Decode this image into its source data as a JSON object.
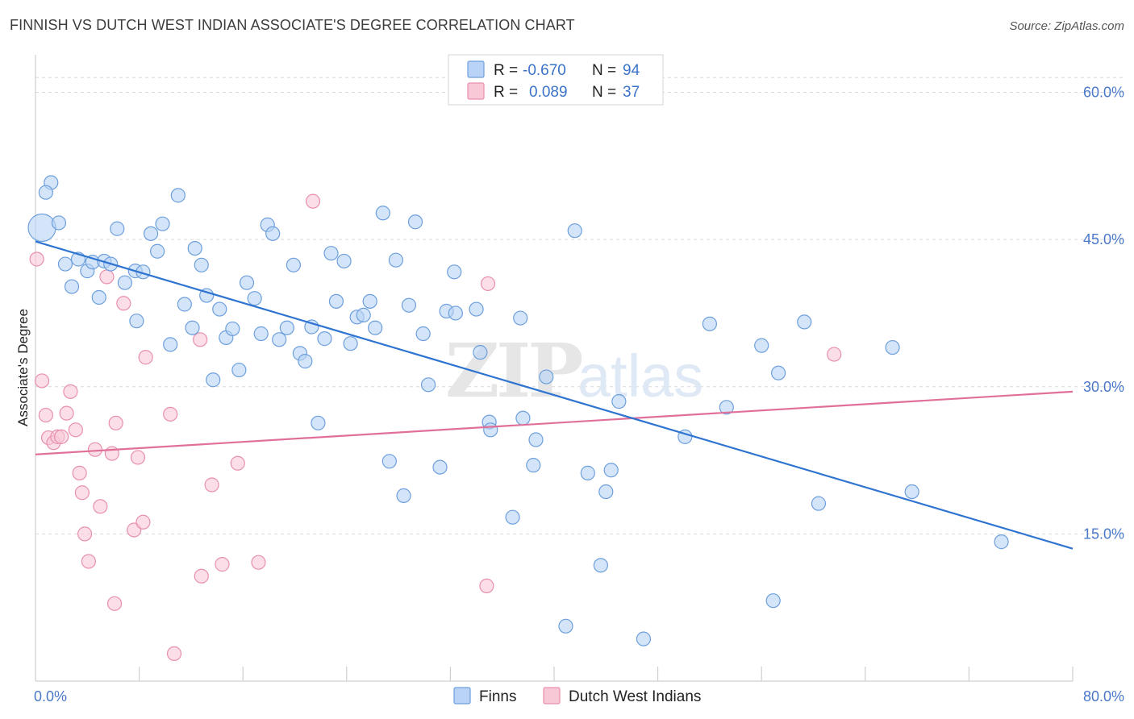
{
  "header": {
    "title": "FINNISH VS DUTCH WEST INDIAN ASSOCIATE'S DEGREE CORRELATION CHART",
    "source": "Source: ZipAtlas.com"
  },
  "watermark": {
    "zip": "ZIP",
    "atlas": "atlas"
  },
  "colors": {
    "finns_fill": "#b8d3f5",
    "finns_stroke": "#6d9fdc",
    "finns_line": "#2f74d0",
    "dwi_fill": "#f8c8d7",
    "dwi_stroke": "#e890ae",
    "dwi_line": "#e0709a",
    "tick_text": "#4a78c8",
    "grid": "#d9d9d9"
  },
  "chart_data": {
    "type": "scatter",
    "title": "FINNISH VS DUTCH WEST INDIAN ASSOCIATE'S DEGREE CORRELATION CHART",
    "xlabel": "",
    "ylabel": "Associate's Degree",
    "xlim": [
      0,
      80
    ],
    "ylim": [
      0,
      63
    ],
    "x_tick_labels": [
      "0.0%",
      "80.0%"
    ],
    "y_ticks": [
      15,
      30,
      45,
      60
    ],
    "y_tick_labels": [
      "15.0%",
      "30.0%",
      "45.0%",
      "60.0%"
    ],
    "grid": "horizontal dashed",
    "legend_position": "top-center (stats) and bottom-center (series)",
    "stats": [
      {
        "r_label": "R = ",
        "r": "-0.670",
        "n_label": "N = ",
        "n": "94"
      },
      {
        "r_label": "R = ",
        "r": "0.089",
        "n_label": "N = ",
        "n": "37"
      }
    ],
    "series": [
      {
        "name": "Finns",
        "trend": {
          "x": [
            0,
            80
          ],
          "y": [
            44.8,
            13.5
          ]
        },
        "points": [
          {
            "x": 0.5,
            "y": 46.2,
            "big": true
          },
          {
            "x": 1.2,
            "y": 50.8
          },
          {
            "x": 0.8,
            "y": 49.8
          },
          {
            "x": 1.8,
            "y": 46.7
          },
          {
            "x": 2.3,
            "y": 42.5
          },
          {
            "x": 2.8,
            "y": 40.2
          },
          {
            "x": 3.3,
            "y": 43.0
          },
          {
            "x": 4.0,
            "y": 41.8
          },
          {
            "x": 4.4,
            "y": 42.7
          },
          {
            "x": 4.9,
            "y": 39.1
          },
          {
            "x": 5.3,
            "y": 42.8
          },
          {
            "x": 5.8,
            "y": 42.5
          },
          {
            "x": 6.3,
            "y": 46.1
          },
          {
            "x": 6.9,
            "y": 40.6
          },
          {
            "x": 7.7,
            "y": 41.8
          },
          {
            "x": 7.8,
            "y": 36.7
          },
          {
            "x": 8.3,
            "y": 41.7
          },
          {
            "x": 8.9,
            "y": 45.6
          },
          {
            "x": 9.4,
            "y": 43.8
          },
          {
            "x": 9.8,
            "y": 46.6
          },
          {
            "x": 10.4,
            "y": 34.3
          },
          {
            "x": 11.0,
            "y": 49.5
          },
          {
            "x": 11.5,
            "y": 38.4
          },
          {
            "x": 12.1,
            "y": 36.0
          },
          {
            "x": 12.3,
            "y": 44.1
          },
          {
            "x": 12.8,
            "y": 42.4
          },
          {
            "x": 13.2,
            "y": 39.3
          },
          {
            "x": 13.7,
            "y": 30.7
          },
          {
            "x": 14.2,
            "y": 37.9
          },
          {
            "x": 14.7,
            "y": 35.0
          },
          {
            "x": 15.2,
            "y": 35.9
          },
          {
            "x": 15.7,
            "y": 31.7
          },
          {
            "x": 16.3,
            "y": 40.6
          },
          {
            "x": 16.9,
            "y": 39.0
          },
          {
            "x": 17.4,
            "y": 35.4
          },
          {
            "x": 17.9,
            "y": 46.5
          },
          {
            "x": 18.3,
            "y": 45.6
          },
          {
            "x": 18.8,
            "y": 34.8
          },
          {
            "x": 19.4,
            "y": 36.0
          },
          {
            "x": 19.9,
            "y": 42.4
          },
          {
            "x": 20.4,
            "y": 33.4
          },
          {
            "x": 20.8,
            "y": 32.6
          },
          {
            "x": 21.3,
            "y": 36.1
          },
          {
            "x": 21.8,
            "y": 26.3
          },
          {
            "x": 22.3,
            "y": 34.9
          },
          {
            "x": 22.8,
            "y": 43.6
          },
          {
            "x": 23.2,
            "y": 38.7
          },
          {
            "x": 23.8,
            "y": 42.8
          },
          {
            "x": 24.3,
            "y": 34.4
          },
          {
            "x": 24.8,
            "y": 37.1
          },
          {
            "x": 25.3,
            "y": 37.3
          },
          {
            "x": 25.8,
            "y": 38.7
          },
          {
            "x": 26.2,
            "y": 36.0
          },
          {
            "x": 26.8,
            "y": 47.7
          },
          {
            "x": 27.3,
            "y": 22.4
          },
          {
            "x": 27.8,
            "y": 42.9
          },
          {
            "x": 28.4,
            "y": 18.9
          },
          {
            "x": 28.8,
            "y": 38.3
          },
          {
            "x": 29.3,
            "y": 46.8
          },
          {
            "x": 29.9,
            "y": 35.4
          },
          {
            "x": 30.3,
            "y": 30.2
          },
          {
            "x": 31.2,
            "y": 21.8
          },
          {
            "x": 31.7,
            "y": 37.7
          },
          {
            "x": 32.3,
            "y": 41.7
          },
          {
            "x": 32.4,
            "y": 37.5
          },
          {
            "x": 34.0,
            "y": 37.9
          },
          {
            "x": 34.3,
            "y": 33.5
          },
          {
            "x": 35.0,
            "y": 26.4
          },
          {
            "x": 35.1,
            "y": 25.6
          },
          {
            "x": 36.8,
            "y": 16.7
          },
          {
            "x": 37.4,
            "y": 37.0
          },
          {
            "x": 37.6,
            "y": 26.8
          },
          {
            "x": 38.4,
            "y": 22.0
          },
          {
            "x": 38.6,
            "y": 24.6
          },
          {
            "x": 39.4,
            "y": 31.0
          },
          {
            "x": 40.9,
            "y": 5.6
          },
          {
            "x": 41.6,
            "y": 45.9
          },
          {
            "x": 42.6,
            "y": 21.2
          },
          {
            "x": 43.6,
            "y": 11.8
          },
          {
            "x": 44.0,
            "y": 19.3
          },
          {
            "x": 44.4,
            "y": 21.5
          },
          {
            "x": 45.0,
            "y": 28.5
          },
          {
            "x": 46.9,
            "y": 4.3
          },
          {
            "x": 50.1,
            "y": 24.9
          },
          {
            "x": 52.0,
            "y": 36.4
          },
          {
            "x": 53.3,
            "y": 27.9
          },
          {
            "x": 56.0,
            "y": 34.2
          },
          {
            "x": 56.9,
            "y": 8.2
          },
          {
            "x": 57.3,
            "y": 31.4
          },
          {
            "x": 59.3,
            "y": 36.6
          },
          {
            "x": 60.4,
            "y": 18.1
          },
          {
            "x": 66.1,
            "y": 34.0
          },
          {
            "x": 67.6,
            "y": 19.3
          },
          {
            "x": 74.5,
            "y": 14.2
          }
        ]
      },
      {
        "name": "Dutch West Indians",
        "trend": {
          "x": [
            0,
            80
          ],
          "y": [
            23.1,
            29.5
          ]
        },
        "points": [
          {
            "x": 0.1,
            "y": 43.0
          },
          {
            "x": 0.5,
            "y": 30.6
          },
          {
            "x": 0.8,
            "y": 27.1
          },
          {
            "x": 1.0,
            "y": 24.8
          },
          {
            "x": 1.4,
            "y": 24.3
          },
          {
            "x": 1.7,
            "y": 24.9
          },
          {
            "x": 2.0,
            "y": 24.9
          },
          {
            "x": 2.4,
            "y": 27.3
          },
          {
            "x": 2.7,
            "y": 29.5
          },
          {
            "x": 3.1,
            "y": 25.6
          },
          {
            "x": 3.4,
            "y": 21.2
          },
          {
            "x": 3.6,
            "y": 19.2
          },
          {
            "x": 3.8,
            "y": 15.0
          },
          {
            "x": 4.1,
            "y": 12.2
          },
          {
            "x": 4.6,
            "y": 23.6
          },
          {
            "x": 5.0,
            "y": 17.8
          },
          {
            "x": 5.5,
            "y": 41.2
          },
          {
            "x": 5.9,
            "y": 23.2
          },
          {
            "x": 6.1,
            "y": 7.9
          },
          {
            "x": 6.2,
            "y": 26.3
          },
          {
            "x": 6.8,
            "y": 38.5
          },
          {
            "x": 7.6,
            "y": 15.4
          },
          {
            "x": 7.9,
            "y": 22.8
          },
          {
            "x": 8.3,
            "y": 16.2
          },
          {
            "x": 8.5,
            "y": 33.0
          },
          {
            "x": 10.4,
            "y": 27.2
          },
          {
            "x": 10.7,
            "y": 2.8
          },
          {
            "x": 12.7,
            "y": 34.8
          },
          {
            "x": 12.8,
            "y": 10.7
          },
          {
            "x": 13.6,
            "y": 20.0
          },
          {
            "x": 14.4,
            "y": 11.9
          },
          {
            "x": 15.6,
            "y": 22.2
          },
          {
            "x": 17.2,
            "y": 12.1
          },
          {
            "x": 21.4,
            "y": 48.9
          },
          {
            "x": 34.8,
            "y": 9.7
          },
          {
            "x": 34.9,
            "y": 40.5
          },
          {
            "x": 61.6,
            "y": 33.3
          }
        ]
      }
    ]
  }
}
